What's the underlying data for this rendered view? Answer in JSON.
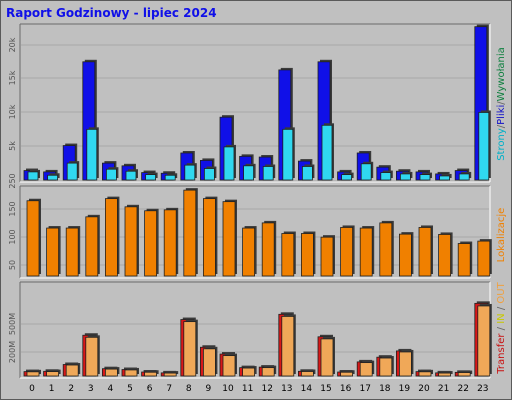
{
  "title": "Raport Godzinowy -  lipiec 2024",
  "legend": {
    "top": [
      {
        "text": "Strony",
        "color": "#00b0c8"
      },
      {
        "text": "/",
        "color": "#666666"
      },
      {
        "text": "Pliki",
        "color": "#1010c8"
      },
      {
        "text": "/",
        "color": "#666666"
      },
      {
        "text": "Wywołania",
        "color": "#108040"
      }
    ],
    "middle": [
      {
        "text": "Lokalizacje",
        "color": "#f08000"
      }
    ],
    "bottom": [
      {
        "text": "Transfer",
        "color": "#c81010"
      },
      {
        "text": " / ",
        "color": "#666666"
      },
      {
        "text": "IN",
        "color": "#c8c800"
      },
      {
        "text": " / ",
        "color": "#666666"
      },
      {
        "text": "OUT",
        "color": "#f0a040"
      }
    ]
  },
  "chart_data": [
    {
      "type": "bar",
      "name": "hits-files-pages",
      "categories": [
        "0",
        "1",
        "2",
        "3",
        "4",
        "5",
        "6",
        "7",
        "8",
        "9",
        "10",
        "11",
        "12",
        "13",
        "14",
        "15",
        "16",
        "17",
        "18",
        "19",
        "20",
        "21",
        "22",
        "23"
      ],
      "yticks": [
        "5k",
        "10k",
        "15k",
        "20k"
      ],
      "ylim": [
        0,
        22800
      ],
      "series": [
        {
          "name": "Wywołania",
          "color": "#108040",
          "values": [
            1400,
            1200,
            5100,
            17500,
            2500,
            2100,
            1100,
            1000,
            4000,
            2900,
            9300,
            3500,
            3400,
            16300,
            2800,
            17500,
            1200,
            4000,
            1900,
            1300,
            1200,
            900,
            1400,
            22700
          ]
        },
        {
          "name": "Pliki",
          "color": "#1010e8",
          "values": [
            1400,
            1200,
            5100,
            17500,
            2500,
            2100,
            1100,
            1000,
            4000,
            2900,
            9300,
            3500,
            3400,
            16300,
            2800,
            17500,
            1200,
            4000,
            1900,
            1300,
            1200,
            900,
            1400,
            22700
          ]
        },
        {
          "name": "Strony",
          "color": "#30d8f0",
          "values": [
            1200,
            700,
            2500,
            7500,
            1600,
            1300,
            800,
            700,
            2200,
            1700,
            4900,
            2100,
            2000,
            7500,
            2000,
            8100,
            800,
            2400,
            1100,
            900,
            800,
            600,
            900,
            10000
          ]
        }
      ]
    },
    {
      "type": "bar",
      "name": "sites",
      "categories": [
        "0",
        "1",
        "2",
        "3",
        "4",
        "5",
        "6",
        "7",
        "8",
        "9",
        "10",
        "11",
        "12",
        "13",
        "14",
        "15",
        "16",
        "17",
        "18",
        "19",
        "20",
        "21",
        "22",
        "23"
      ],
      "yticks": [
        "50",
        "100",
        "150",
        "250"
      ],
      "ylim": [
        0,
        290
      ],
      "series": [
        {
          "name": "Lokalizacje",
          "color": "#f08000",
          "values": [
            248,
            158,
            158,
            195,
            255,
            228,
            215,
            218,
            283,
            255,
            245,
            158,
            175,
            140,
            140,
            128,
            160,
            158,
            175,
            138,
            160,
            137,
            107,
            115
          ]
        }
      ]
    },
    {
      "type": "bar",
      "name": "kbytes",
      "categories": [
        "0",
        "1",
        "2",
        "3",
        "4",
        "5",
        "6",
        "7",
        "8",
        "9",
        "10",
        "11",
        "12",
        "13",
        "14",
        "15",
        "16",
        "17",
        "18",
        "19",
        "20",
        "21",
        "22",
        "23"
      ],
      "yticks": [
        "200M",
        "500M"
      ],
      "ylim": [
        0,
        880
      ],
      "series": [
        {
          "name": "Transfer",
          "color": "#d81818",
          "values": [
            42,
            45,
            110,
            390,
            70,
            62,
            38,
            30,
            540,
            275,
            210,
            80,
            85,
            590,
            45,
            375,
            38,
            135,
            180,
            240,
            42,
            30,
            35,
            695
          ]
        },
        {
          "name": "OUT",
          "color": "#f0a858",
          "values": [
            40,
            42,
            105,
            370,
            66,
            58,
            36,
            28,
            520,
            260,
            195,
            76,
            80,
            570,
            43,
            355,
            36,
            128,
            172,
            230,
            40,
            28,
            33,
            670
          ]
        }
      ]
    }
  ]
}
